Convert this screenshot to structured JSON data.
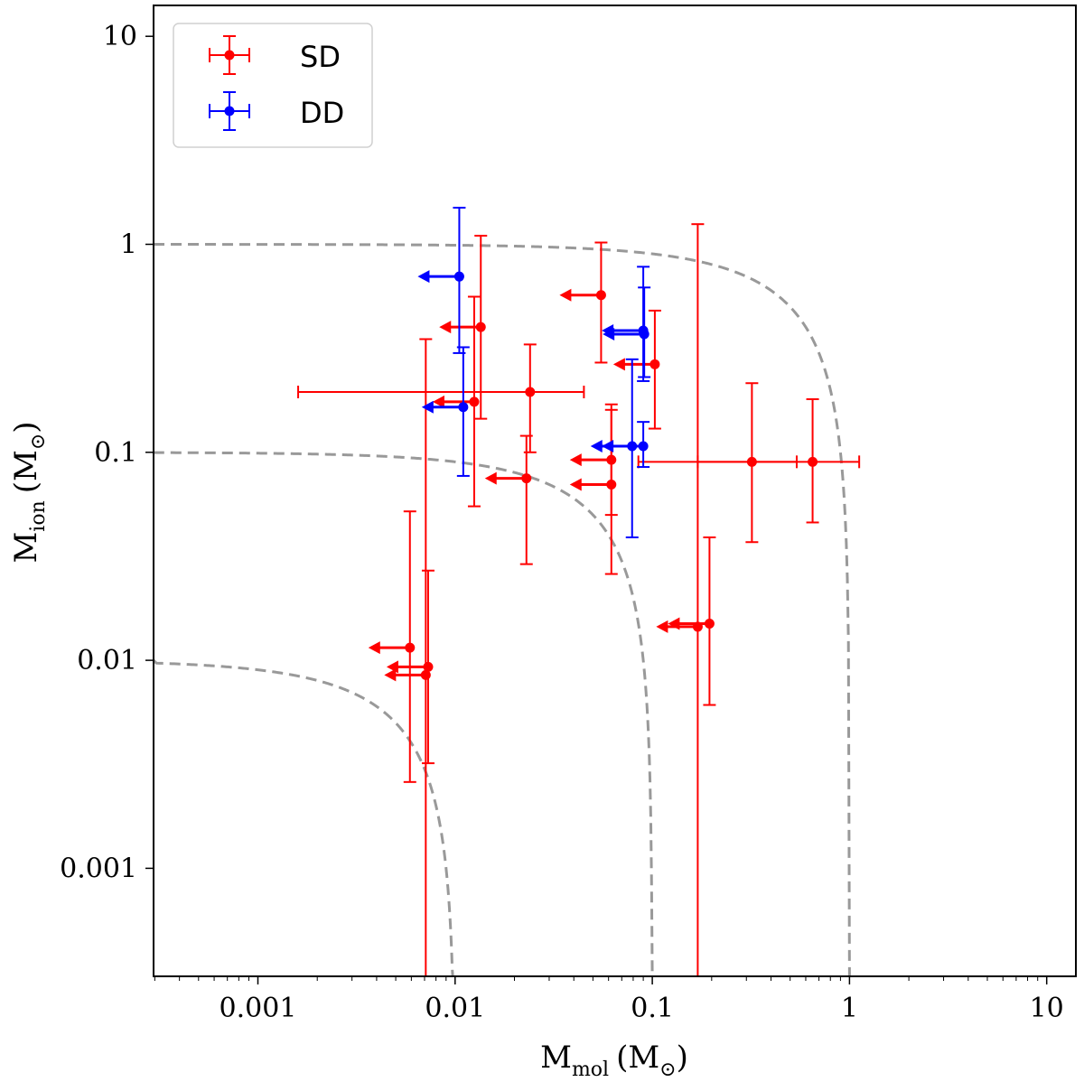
{
  "chart_data": {
    "type": "scatter",
    "x_scale": "log",
    "y_scale": "log",
    "xlim": [
      0.0003,
      15
    ],
    "ylim": [
      0.0003,
      15
    ],
    "x_ticks": [
      {
        "value": 0.001,
        "label": "0.001"
      },
      {
        "value": 0.01,
        "label": "0.01"
      },
      {
        "value": 0.1,
        "label": "0.1"
      },
      {
        "value": 1,
        "label": "1"
      },
      {
        "value": 10,
        "label": "10"
      }
    ],
    "y_ticks": [
      {
        "value": 0.001,
        "label": "0.001"
      },
      {
        "value": 0.01,
        "label": "0.01"
      },
      {
        "value": 0.1,
        "label": "0.1"
      },
      {
        "value": 1,
        "label": "1"
      },
      {
        "value": 10,
        "label": "10"
      }
    ],
    "xlabel": {
      "main": "M",
      "sub": "mol",
      "unit": "(M",
      "unit_sub": "⊙",
      "unit_close": ")"
    },
    "ylabel": {
      "main": "M",
      "sub": "ion",
      "unit": "(M",
      "unit_sub": "⊙",
      "unit_close": ")"
    },
    "reference_curves": [
      {
        "total_mass": 0.01,
        "style": "dashed",
        "color": "#999999"
      },
      {
        "total_mass": 0.1,
        "style": "dashed",
        "color": "#999999"
      },
      {
        "total_mass": 1,
        "style": "dashed",
        "color": "#999999"
      }
    ],
    "legend_position": "top-left",
    "series": [
      {
        "name": "SD",
        "color": "#ff0000",
        "points": [
          {
            "x": 0.0135,
            "y": 0.4,
            "ylo": 0.145,
            "yhi": 1.1,
            "upper_limit_x": true
          },
          {
            "x": 0.0125,
            "y": 0.175,
            "ylo": 0.055,
            "yhi": 0.56,
            "upper_limit_x": true
          },
          {
            "x": 0.024,
            "y": 0.195,
            "ylo": 0.1,
            "yhi": 0.33,
            "xlo": 0.0016,
            "xhi": 0.045
          },
          {
            "x": 0.023,
            "y": 0.075,
            "ylo": 0.029,
            "yhi": 0.12,
            "upper_limit_x": true
          },
          {
            "x": 0.055,
            "y": 0.57,
            "ylo": 0.27,
            "yhi": 1.02,
            "upper_limit_x": true
          },
          {
            "x": 0.103,
            "y": 0.265,
            "ylo": 0.13,
            "yhi": 0.48,
            "upper_limit_x": true
          },
          {
            "x": 0.062,
            "y": 0.092,
            "ylo": 0.05,
            "yhi": 0.17,
            "upper_limit_x": true
          },
          {
            "x": 0.062,
            "y": 0.07,
            "ylo": 0.026,
            "yhi": 0.16,
            "upper_limit_x": true
          },
          {
            "x": 0.32,
            "y": 0.09,
            "ylo": 0.037,
            "yhi": 0.215,
            "xlo": 0.17,
            "xhi": 0.54
          },
          {
            "x": 0.65,
            "y": 0.09,
            "ylo": 0.046,
            "yhi": 0.18,
            "xlo": 0.085,
            "xhi": 1.12
          },
          {
            "x": 0.0059,
            "y": 0.0115,
            "ylo": 0.0026,
            "yhi": 0.052,
            "upper_limit_x": true
          },
          {
            "x": 0.0073,
            "y": 0.0093,
            "ylo": 0.0032,
            "yhi": 0.027,
            "upper_limit_x": true
          },
          {
            "x": 0.0071,
            "y": 0.0085,
            "ylo": 0.0003,
            "yhi": 0.35,
            "upper_limit_x": true
          },
          {
            "x": 0.17,
            "y": 0.0145,
            "ylo": 0.0003,
            "yhi": 1.25,
            "upper_limit_x": true
          },
          {
            "x": 0.195,
            "y": 0.015,
            "ylo": 0.0061,
            "yhi": 0.039,
            "upper_limit_x": true
          }
        ]
      },
      {
        "name": "DD",
        "color": "#0000ff",
        "points": [
          {
            "x": 0.0105,
            "y": 0.7,
            "ylo": 0.3,
            "yhi": 1.5,
            "upper_limit_x": true
          },
          {
            "x": 0.011,
            "y": 0.165,
            "ylo": 0.077,
            "yhi": 0.32,
            "upper_limit_x": true
          },
          {
            "x": 0.09,
            "y": 0.385,
            "ylo": 0.22,
            "yhi": 0.78,
            "upper_limit_x": true
          },
          {
            "x": 0.091,
            "y": 0.37,
            "ylo": 0.23,
            "yhi": 0.62,
            "upper_limit_x": true
          },
          {
            "x": 0.079,
            "y": 0.107,
            "ylo": 0.039,
            "yhi": 0.28,
            "upper_limit_x": true
          },
          {
            "x": 0.09,
            "y": 0.107,
            "ylo": 0.085,
            "yhi": 0.14,
            "upper_limit_x": true
          }
        ]
      }
    ]
  }
}
